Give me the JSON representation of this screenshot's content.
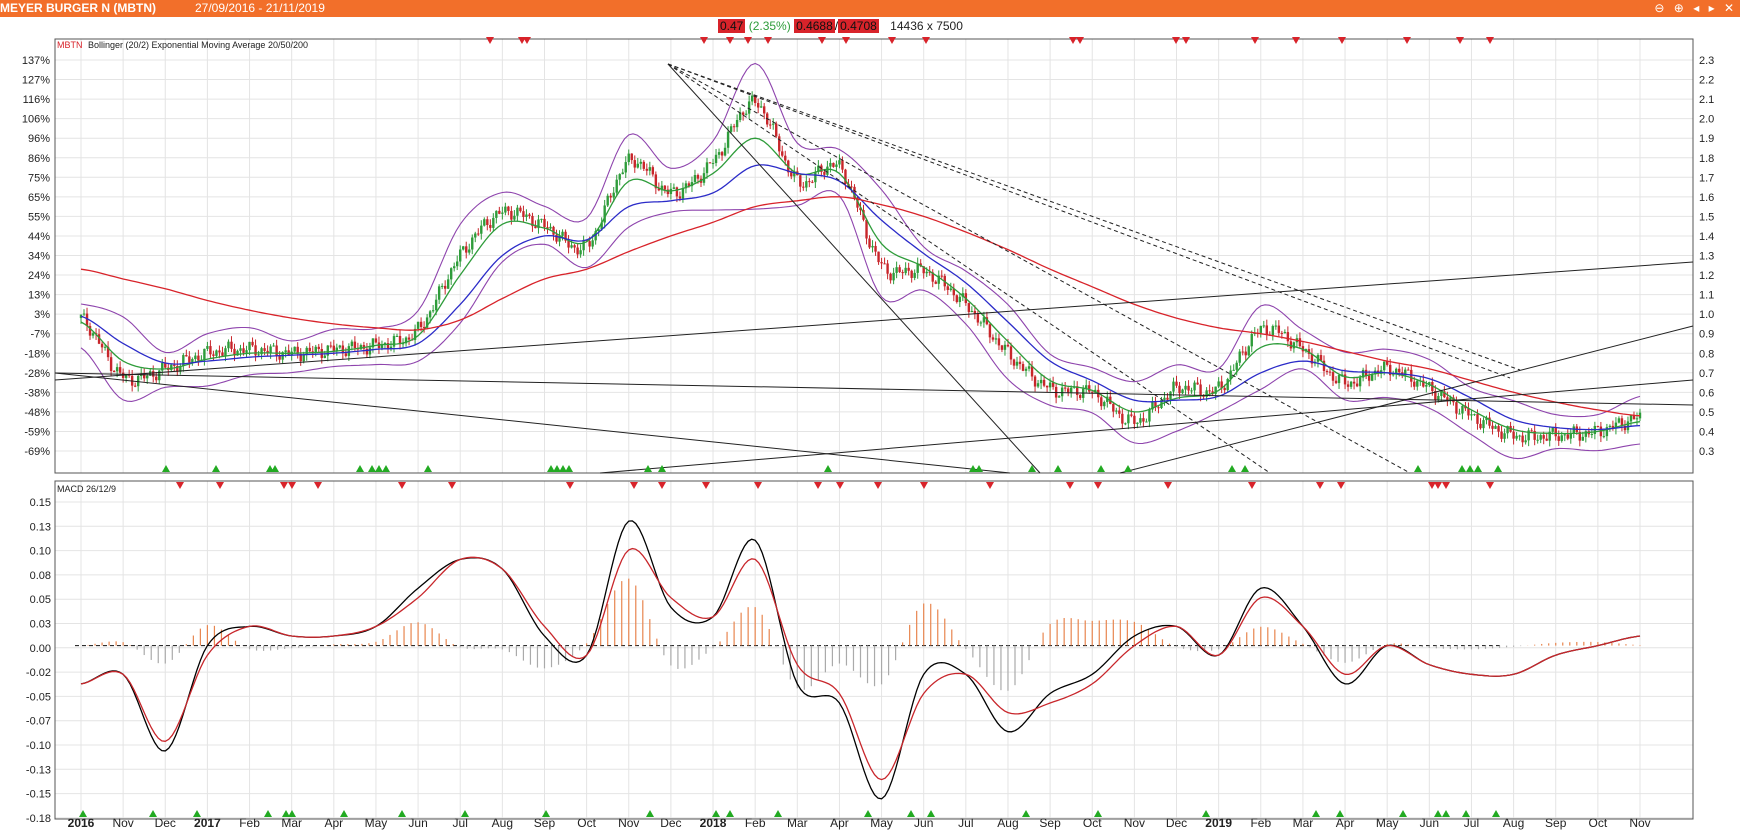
{
  "window": {
    "title": "MEYER BURGER N (MBTN)",
    "date_range": "27/09/2016 - 21/11/2019",
    "controls": [
      "⊖",
      "⊕",
      "◂",
      "▸",
      "✕"
    ]
  },
  "quote": {
    "last": "0.47",
    "change": "(2.35%)",
    "bid": "0.4688",
    "separator": "/",
    "ask": "0.4708",
    "volume": "14436 x 7500"
  },
  "colors": {
    "accent": "#f26f2a",
    "up_candle": "#2e9c3a",
    "down_candle": "#c8262b",
    "ema20": "#2e9c3a",
    "ema50": "#2b2bc8",
    "ema200": "#d8232a",
    "bollinger": "#8e44ad",
    "macd": "#000000",
    "signal": "#c8262b",
    "hist_pos": "#e8854e",
    "hist_neg": "#aaaaaa",
    "buy_marker": "#22aa22",
    "sell_marker": "#d8232a"
  },
  "price_panel": {
    "label_symbol": "MBTN",
    "label_rest": "Bollinger (20/2) Exponential Moving Average 20/50/200",
    "left_ticks": [
      "137%",
      "127%",
      "116%",
      "106%",
      "96%",
      "86%",
      "75%",
      "65%",
      "55%",
      "44%",
      "34%",
      "24%",
      "13%",
      "3%",
      "-7%",
      "-18%",
      "-28%",
      "-38%",
      "-48%",
      "-59%",
      "-69%"
    ],
    "right_ticks": [
      "2.3",
      "2.2",
      "2.1",
      "2.0",
      "1.9",
      "1.8",
      "1.7",
      "1.6",
      "1.5",
      "1.4",
      "1.3",
      "1.2",
      "1.1",
      "1.0",
      "0.9",
      "0.8",
      "0.7",
      "0.6",
      "0.5",
      "0.4",
      "0.3"
    ]
  },
  "macd_panel": {
    "label": "MACD 26/12/9",
    "ticks": [
      "0.15",
      "0.13",
      "0.10",
      "0.08",
      "0.05",
      "0.03",
      "0.00",
      "-0.02",
      "-0.05",
      "-0.07",
      "-0.10",
      "-0.13",
      "-0.15",
      "-0.18"
    ]
  },
  "x_axis": {
    "labels": [
      "2016",
      "Nov",
      "Dec",
      "2017",
      "Feb",
      "Mar",
      "Apr",
      "May",
      "Jun",
      "Jul",
      "Aug",
      "Sep",
      "Oct",
      "Nov",
      "Dec",
      "2018",
      "Feb",
      "Mar",
      "Apr",
      "May",
      "Jun",
      "Jul",
      "Aug",
      "Sep",
      "Oct",
      "Nov",
      "Dec",
      "2019",
      "Feb",
      "Mar",
      "Apr",
      "May",
      "Jun",
      "Jul",
      "Aug",
      "Sep",
      "Oct",
      "Nov"
    ],
    "bold": [
      "2016",
      "2017",
      "2018",
      "2019"
    ]
  },
  "chart_data": [
    {
      "type": "line",
      "title": "MBTN",
      "x": [
        "2016-10",
        "2016-11",
        "2016-12",
        "2017-01",
        "2017-02",
        "2017-03",
        "2017-04",
        "2017-05",
        "2017-06",
        "2017-07",
        "2017-08",
        "2017-09",
        "2017-10",
        "2017-11",
        "2017-12",
        "2018-01",
        "2018-02",
        "2018-03",
        "2018-04",
        "2018-05",
        "2018-06",
        "2018-07",
        "2018-08",
        "2018-09",
        "2018-10",
        "2018-11",
        "2018-12",
        "2019-01",
        "2019-02",
        "2019-03",
        "2019-04",
        "2019-05",
        "2019-06",
        "2019-07",
        "2019-08",
        "2019-09",
        "2019-10",
        "2019-11"
      ],
      "ylim": [
        0.27,
        2.33
      ],
      "y2_label_percent": true,
      "series": [
        {
          "name": "MBTN",
          "values": [
            0.98,
            0.68,
            0.72,
            0.8,
            0.82,
            0.8,
            0.82,
            0.84,
            0.92,
            1.3,
            1.52,
            1.45,
            1.35,
            1.78,
            1.62,
            1.78,
            2.08,
            1.68,
            1.75,
            1.25,
            1.22,
            1.05,
            0.8,
            0.62,
            0.6,
            0.45,
            0.62,
            0.62,
            0.92,
            0.82,
            0.65,
            0.72,
            0.62,
            0.48,
            0.38,
            0.38,
            0.4,
            0.47
          ]
        },
        {
          "name": "EMA 20",
          "values": [
            0.96,
            0.76,
            0.72,
            0.77,
            0.8,
            0.8,
            0.81,
            0.84,
            0.89,
            1.2,
            1.46,
            1.44,
            1.37,
            1.68,
            1.63,
            1.72,
            1.9,
            1.72,
            1.72,
            1.36,
            1.24,
            1.08,
            0.86,
            0.66,
            0.61,
            0.5,
            0.57,
            0.61,
            0.83,
            0.82,
            0.68,
            0.7,
            0.64,
            0.51,
            0.41,
            0.39,
            0.4,
            0.45
          ]
        },
        {
          "name": "EMA 50",
          "values": [
            0.99,
            0.85,
            0.75,
            0.76,
            0.78,
            0.79,
            0.8,
            0.82,
            0.85,
            1.05,
            1.3,
            1.4,
            1.38,
            1.55,
            1.58,
            1.62,
            1.76,
            1.72,
            1.68,
            1.48,
            1.31,
            1.16,
            0.96,
            0.76,
            0.66,
            0.56,
            0.56,
            0.58,
            0.7,
            0.76,
            0.71,
            0.7,
            0.67,
            0.57,
            0.46,
            0.42,
            0.41,
            0.43
          ]
        },
        {
          "name": "EMA 200",
          "values": [
            1.23,
            1.18,
            1.13,
            1.07,
            1.02,
            0.98,
            0.95,
            0.93,
            0.92,
            0.97,
            1.08,
            1.18,
            1.23,
            1.32,
            1.4,
            1.47,
            1.55,
            1.58,
            1.6,
            1.56,
            1.5,
            1.42,
            1.33,
            1.23,
            1.14,
            1.05,
            0.98,
            0.93,
            0.9,
            0.86,
            0.81,
            0.76,
            0.72,
            0.66,
            0.6,
            0.55,
            0.51,
            0.48
          ]
        }
      ]
    },
    {
      "type": "line",
      "title": "MACD 26/12/9",
      "x": [
        "2016-10",
        "2016-11",
        "2016-12",
        "2017-01",
        "2017-02",
        "2017-03",
        "2017-04",
        "2017-05",
        "2017-06",
        "2017-07",
        "2017-08",
        "2017-09",
        "2017-10",
        "2017-11",
        "2017-12",
        "2018-01",
        "2018-02",
        "2018-03",
        "2018-04",
        "2018-05",
        "2018-06",
        "2018-07",
        "2018-08",
        "2018-09",
        "2018-10",
        "2018-11",
        "2018-12",
        "2019-01",
        "2019-02",
        "2019-03",
        "2019-04",
        "2019-05",
        "2019-06",
        "2019-07",
        "2019-08",
        "2019-09",
        "2019-10",
        "2019-11"
      ],
      "ylim": [
        -0.18,
        0.16
      ],
      "series": [
        {
          "name": "MACD",
          "values": [
            -0.04,
            -0.03,
            -0.11,
            0.0,
            0.02,
            0.01,
            0.01,
            0.02,
            0.06,
            0.09,
            0.08,
            0.01,
            -0.01,
            0.13,
            0.04,
            0.03,
            0.11,
            -0.04,
            -0.06,
            -0.16,
            -0.03,
            -0.03,
            -0.09,
            -0.05,
            -0.03,
            0.01,
            0.02,
            -0.01,
            0.06,
            0.02,
            -0.04,
            0.0,
            -0.02,
            -0.03,
            -0.03,
            -0.01,
            0.0,
            0.01
          ]
        },
        {
          "name": "Signal",
          "values": [
            -0.04,
            -0.03,
            -0.1,
            -0.01,
            0.02,
            0.01,
            0.01,
            0.02,
            0.05,
            0.09,
            0.08,
            0.02,
            -0.01,
            0.1,
            0.05,
            0.03,
            0.09,
            -0.02,
            -0.05,
            -0.14,
            -0.05,
            -0.03,
            -0.07,
            -0.06,
            -0.04,
            0.0,
            0.02,
            -0.01,
            0.05,
            0.02,
            -0.03,
            0.0,
            -0.02,
            -0.03,
            -0.03,
            -0.01,
            0.0,
            0.01
          ]
        }
      ]
    }
  ]
}
